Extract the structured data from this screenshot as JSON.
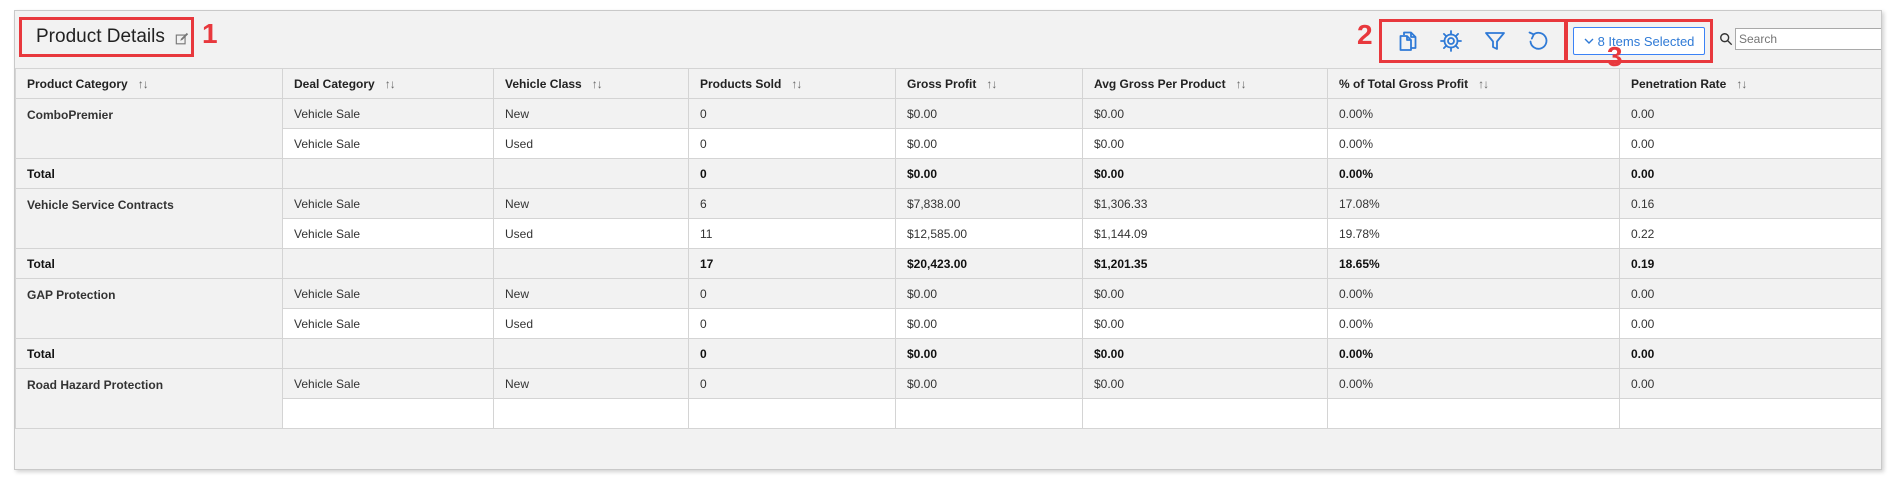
{
  "header": {
    "title": "Product Details"
  },
  "annotations": {
    "one": "1",
    "two": "2",
    "three": "3"
  },
  "toolbar": {
    "icons": [
      "copy-icon",
      "settings-icon",
      "filter-icon",
      "reset-icon"
    ],
    "items_selected_label": "8 Items Selected",
    "search_placeholder": "Search"
  },
  "colors": {
    "accent": "#2f7ad6",
    "annotation": "#e8383d",
    "panel": "#f2f2f2"
  },
  "table": {
    "columns": [
      "Product Category",
      "Deal Category",
      "Vehicle Class",
      "Products Sold",
      "Gross Profit",
      "Avg Gross Per Product",
      "% of Total Gross Profit",
      "Penetration Rate"
    ],
    "groups": [
      {
        "category": "ComboPremier",
        "rows": [
          [
            "Vehicle Sale",
            "New",
            "0",
            "$0.00",
            "$0.00",
            "0.00%",
            "0.00"
          ],
          [
            "Vehicle Sale",
            "Used",
            "0",
            "$0.00",
            "$0.00",
            "0.00%",
            "0.00"
          ]
        ],
        "total": {
          "label": "Total",
          "values": [
            "",
            "",
            "0",
            "$0.00",
            "$0.00",
            "0.00%",
            "0.00"
          ]
        }
      },
      {
        "category": "Vehicle Service Contracts",
        "rows": [
          [
            "Vehicle Sale",
            "New",
            "6",
            "$7,838.00",
            "$1,306.33",
            "17.08%",
            "0.16"
          ],
          [
            "Vehicle Sale",
            "Used",
            "11",
            "$12,585.00",
            "$1,144.09",
            "19.78%",
            "0.22"
          ]
        ],
        "total": {
          "label": "Total",
          "values": [
            "",
            "",
            "17",
            "$20,423.00",
            "$1,201.35",
            "18.65%",
            "0.19"
          ]
        }
      },
      {
        "category": "GAP Protection",
        "rows": [
          [
            "Vehicle Sale",
            "New",
            "0",
            "$0.00",
            "$0.00",
            "0.00%",
            "0.00"
          ],
          [
            "Vehicle Sale",
            "Used",
            "0",
            "$0.00",
            "$0.00",
            "0.00%",
            "0.00"
          ]
        ],
        "total": {
          "label": "Total",
          "values": [
            "",
            "",
            "0",
            "$0.00",
            "$0.00",
            "0.00%",
            "0.00"
          ]
        }
      },
      {
        "category": "Road Hazard Protection",
        "rows": [
          [
            "Vehicle Sale",
            "New",
            "0",
            "$0.00",
            "$0.00",
            "0.00%",
            "0.00"
          ]
        ]
      }
    ]
  }
}
